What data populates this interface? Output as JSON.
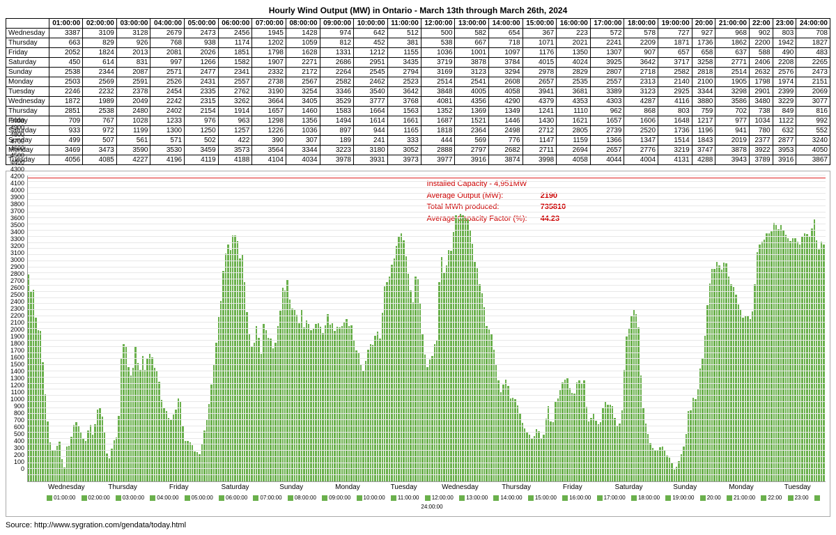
{
  "title": "Hourly Wind Output (MW) in Ontario - March 13th through March 26th, 2024",
  "hours": [
    "01:00:00",
    "02:00:00",
    "03:00:00",
    "04:00:00",
    "05:00:00",
    "06:00:00",
    "07:00:00",
    "08:00:00",
    "09:00:00",
    "10:00:00",
    "11:00:00",
    "12:00:00",
    "13:00:00",
    "14:00:00",
    "15:00:00",
    "16:00:00",
    "17:00:00",
    "18:00:00",
    "19:00:00",
    "20:00",
    "21:00:00",
    "22:00",
    "23:00",
    "24:00:00"
  ],
  "days": [
    "Wednesday",
    "Thursday",
    "Friday",
    "Saturday",
    "Sunday",
    "Monday",
    "Tuesday",
    "Wednesday",
    "Thursday",
    "Friday",
    "Saturday",
    "Sunday",
    "Monday",
    "Tuesday"
  ],
  "values": [
    [
      3387,
      3109,
      3128,
      2679,
      2473,
      2456,
      1945,
      1428,
      974,
      642,
      512,
      500,
      582,
      654,
      367,
      223,
      572,
      578,
      727,
      927,
      968,
      902,
      803,
      708
    ],
    [
      663,
      829,
      926,
      768,
      938,
      1174,
      1202,
      1059,
      812,
      452,
      381,
      538,
      667,
      718,
      1071,
      2021,
      2241,
      2209,
      1871,
      1736,
      1862,
      2200,
      1942,
      1827
    ],
    [
      2052,
      1824,
      2013,
      2081,
      2026,
      1851,
      1798,
      1628,
      1331,
      1212,
      1155,
      1036,
      1001,
      1097,
      1176,
      1350,
      1307,
      907,
      657,
      658,
      637,
      588,
      490,
      483
    ],
    [
      450,
      614,
      831,
      997,
      1266,
      1582,
      1907,
      2271,
      2686,
      2951,
      3435,
      3719,
      3878,
      3784,
      4015,
      4024,
      3925,
      3642,
      3717,
      3258,
      2771,
      2406,
      2208,
      2265
    ],
    [
      2538,
      2344,
      2087,
      2571,
      2477,
      2341,
      2332,
      2172,
      2264,
      2545,
      2794,
      3169,
      3123,
      3294,
      2978,
      2829,
      2807,
      2718,
      2582,
      2818,
      2514,
      2632,
      2576,
      2473
    ],
    [
      2503,
      2569,
      2591,
      2526,
      2431,
      2557,
      2738,
      2567,
      2582,
      2462,
      2523,
      2514,
      2541,
      2608,
      2657,
      2535,
      2557,
      2313,
      2140,
      2100,
      1905,
      1798,
      1974,
      2151
    ],
    [
      2246,
      2232,
      2378,
      2454,
      2335,
      2762,
      3190,
      3254,
      3346,
      3540,
      3642,
      3848,
      4005,
      4058,
      3941,
      3681,
      3389,
      3123,
      2925,
      3344,
      3298,
      2901,
      2399,
      2069
    ],
    [
      1872,
      1989,
      2049,
      2242,
      2315,
      3262,
      3664,
      3405,
      3529,
      3777,
      3768,
      4081,
      4356,
      4290,
      4379,
      4353,
      4303,
      4287,
      4116,
      3880,
      3586,
      3480,
      3229,
      3077
    ],
    [
      2851,
      2538,
      2480,
      2402,
      2154,
      1914,
      1657,
      1460,
      1583,
      1664,
      1563,
      1352,
      1369,
      1349,
      1241,
      1110,
      962,
      868,
      803,
      759,
      702,
      738,
      849,
      816
    ],
    [
      709,
      767,
      1028,
      1233,
      976,
      963,
      1298,
      1356,
      1494,
      1614,
      1661,
      1687,
      1521,
      1446,
      1430,
      1621,
      1657,
      1606,
      1648,
      1217,
      977,
      1034,
      1122,
      992
    ],
    [
      933,
      972,
      1199,
      1300,
      1250,
      1257,
      1226,
      1036,
      897,
      944,
      1165,
      1818,
      2364,
      2498,
      2712,
      2805,
      2739,
      2520,
      1736,
      1196,
      941,
      780,
      632,
      552
    ],
    [
      499,
      507,
      561,
      571,
      502,
      422,
      390,
      307,
      189,
      241,
      333,
      444,
      569,
      776,
      1147,
      1159,
      1366,
      1347,
      1514,
      1843,
      2019,
      2377,
      2877,
      3240
    ],
    [
      3469,
      3473,
      3590,
      3530,
      3459,
      3573,
      3564,
      3344,
      3223,
      3180,
      3052,
      2888,
      2797,
      2682,
      2711,
      2694,
      2657,
      2776,
      3219,
      3747,
      3878,
      3922,
      3953,
      4050
    ],
    [
      4056,
      4085,
      4227,
      4196,
      4119,
      4188,
      4104,
      4034,
      3978,
      3931,
      3973,
      3977,
      3916,
      3874,
      3998,
      4058,
      4044,
      4004,
      4131,
      4288,
      3943,
      3789,
      3916,
      3867
    ]
  ],
  "chart": {
    "type": "bar",
    "y_max": 5000,
    "y_step": 100,
    "bar_color": "#6ab04c",
    "grid_color": "#e8e8e8",
    "capacity_line_color": "#e02020",
    "capacity_value": 4951,
    "background": "#ffffff",
    "title_fontsize": 12,
    "axis_fontsize": 9
  },
  "annotations": {
    "capacity_label": "Installed Capacity - 4,951MW",
    "avg_output_label": "Average Output (MW):",
    "avg_output_value": "2190",
    "total_mwh_label": "Total MWh produced:",
    "total_mwh_value": "735810",
    "cf_label": "Average Capacity Factor (%):",
    "cf_value": "44.23"
  },
  "source": "Source: http://www.sygration.com/gendata/today.html"
}
